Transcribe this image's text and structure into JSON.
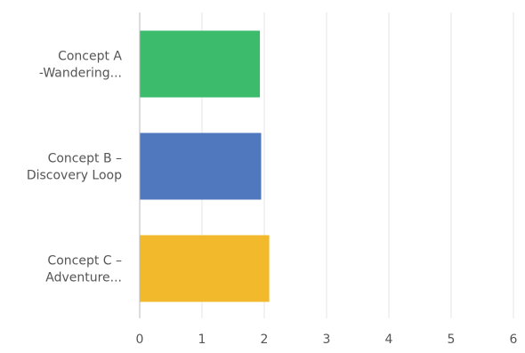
{
  "chart_data": {
    "type": "bar",
    "orientation": "horizontal",
    "categories": [
      [
        "Concept A",
        "-Wandering..."
      ],
      [
        "Concept B –",
        "Discovery Loop"
      ],
      [
        "Concept C –",
        "Adventure..."
      ]
    ],
    "values": [
      1.93,
      1.95,
      2.08
    ],
    "xlim": [
      0,
      6
    ],
    "x_ticks": [
      "0",
      "1",
      "2",
      "3",
      "4",
      "5",
      "6"
    ],
    "grid": true,
    "title": "",
    "xlabel": "",
    "ylabel": "",
    "colors": [
      "#3dbb6c",
      "#4f78bf",
      "#f2b92c"
    ],
    "grid_color": "#e6e6e6",
    "axis_color": "#b8b8b8",
    "label_color": "#555555"
  }
}
